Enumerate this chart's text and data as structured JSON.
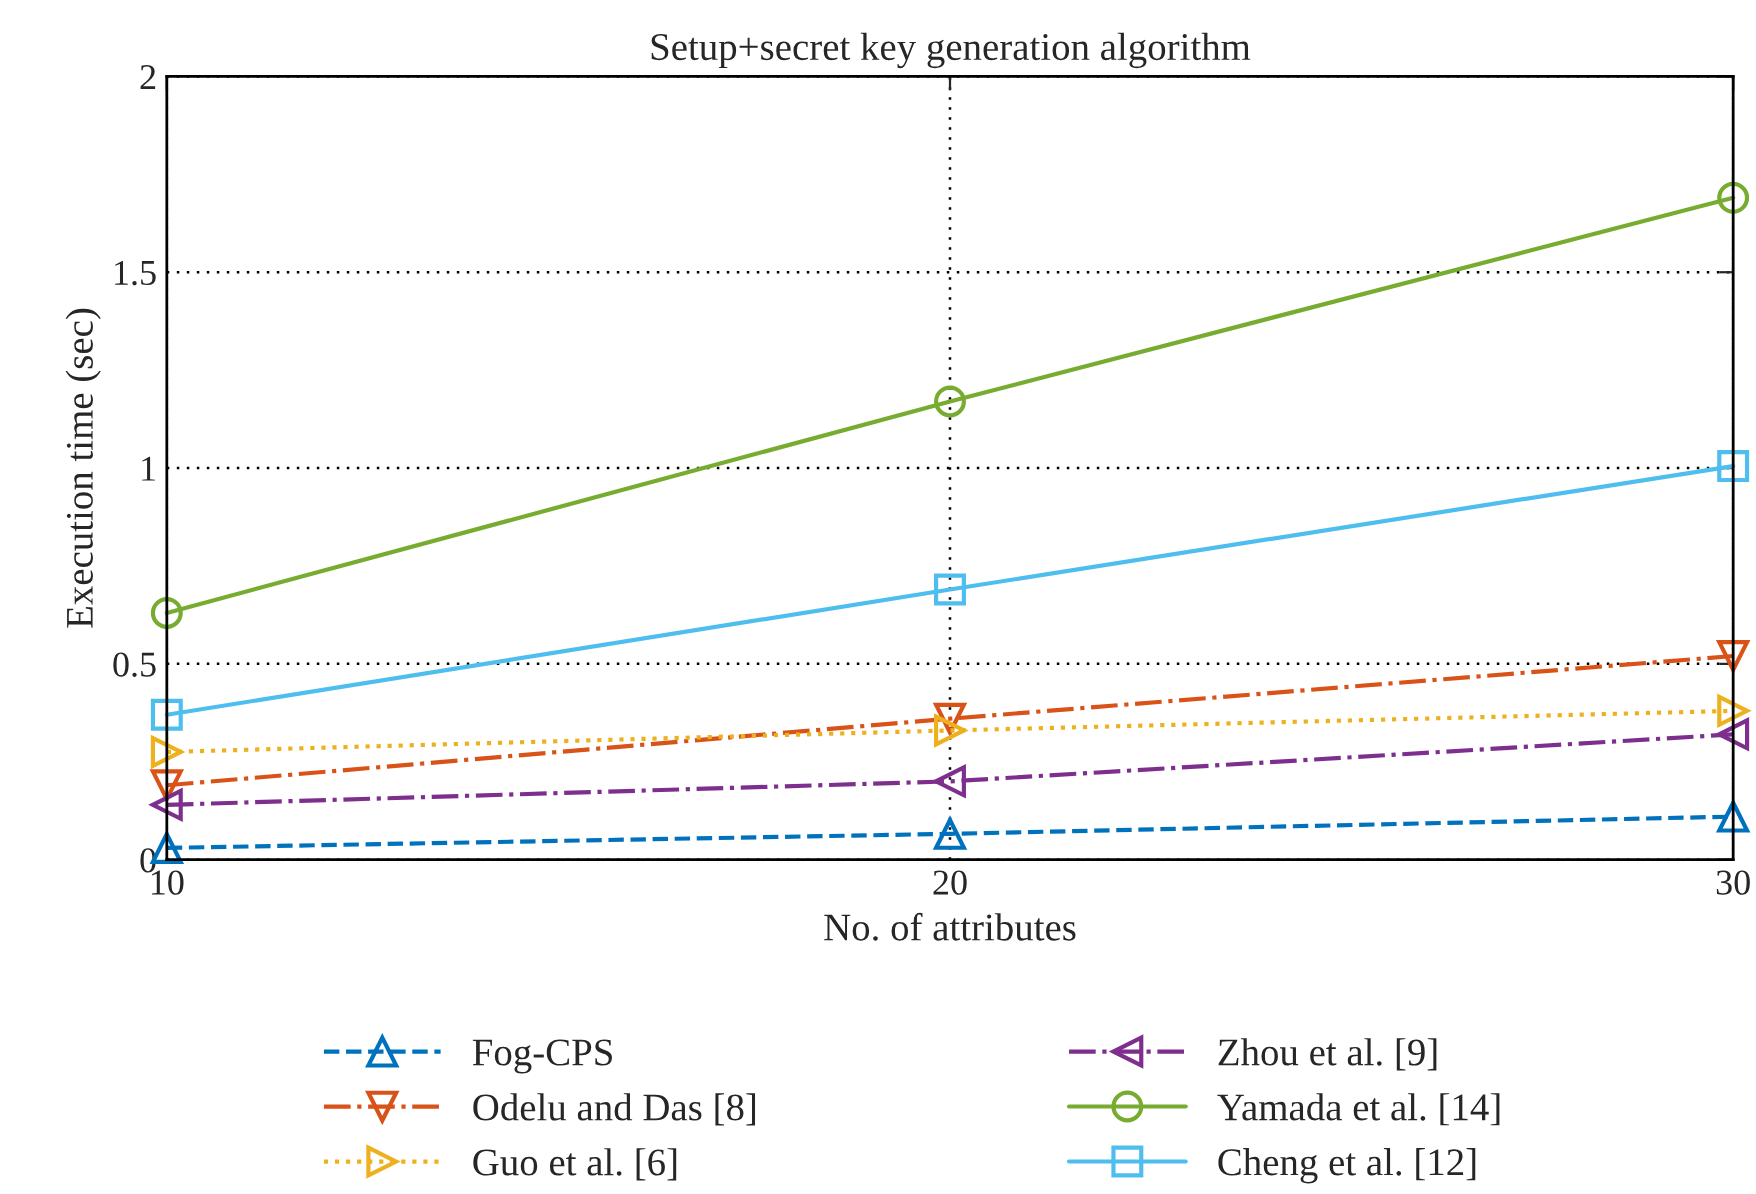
{
  "chart_data": {
    "type": "line",
    "title": "Setup+secret key generation algorithm",
    "xlabel": "No. of attributes",
    "ylabel": "Execution time (sec)",
    "x": [
      10,
      20,
      30
    ],
    "xlim": [
      10,
      30
    ],
    "xticks": [
      10,
      20,
      30
    ],
    "ylim": [
      0,
      2
    ],
    "yticks": [
      0,
      0.5,
      1,
      1.5,
      2
    ],
    "grid": true,
    "legend": "bottom",
    "series": [
      {
        "name": "Fog-CPS",
        "color": "#0072bd",
        "marker": "triangle",
        "line_style": "dashed",
        "values": [
          0.03,
          0.066,
          0.11
        ]
      },
      {
        "name": "Odelu and Das [8]",
        "color": "#d95319",
        "marker": "triangle_down",
        "line_style": "dashdot",
        "values": [
          0.19,
          0.36,
          0.52
        ]
      },
      {
        "name": "Guo et al. [6]",
        "color": "#edb120",
        "marker": "triangle_right",
        "line_style": "dotted",
        "values": [
          0.275,
          0.33,
          0.38
        ]
      },
      {
        "name": "Zhou et al. [9]",
        "color": "#7e2f8e",
        "marker": "triangle_left",
        "line_style": "dashdot",
        "values": [
          0.14,
          0.2,
          0.32
        ]
      },
      {
        "name": "Yamada et al. [14]",
        "color": "#77ac30",
        "marker": "circle",
        "line_style": "solid",
        "values": [
          0.63,
          1.17,
          1.69
        ]
      },
      {
        "name": "Cheng et al. [12]",
        "color": "#4dbeee",
        "marker": "square",
        "line_style": "solid",
        "values": [
          0.37,
          0.69,
          1.005
        ]
      }
    ]
  }
}
